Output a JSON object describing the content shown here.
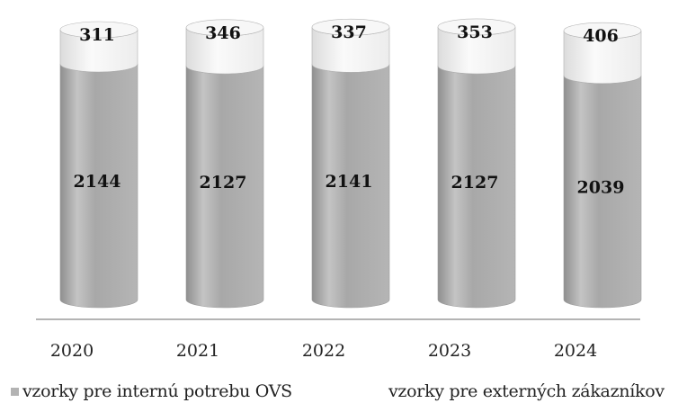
{
  "chart_data": {
    "type": "bar",
    "stacked": true,
    "style": "3d-cylinder",
    "categories": [
      "2020",
      "2021",
      "2022",
      "2023",
      "2024"
    ],
    "series": [
      {
        "name": "vzorky pre internú potrebu OVS",
        "values": [
          2144,
          2127,
          2141,
          2127,
          2039
        ],
        "color": "#b3b3b3"
      },
      {
        "name": "vzorky pre externých zákazníkov",
        "values": [
          311,
          346,
          337,
          353,
          406
        ],
        "color": "#f3f3f3"
      }
    ],
    "legend_position": "bottom",
    "grid": false
  }
}
